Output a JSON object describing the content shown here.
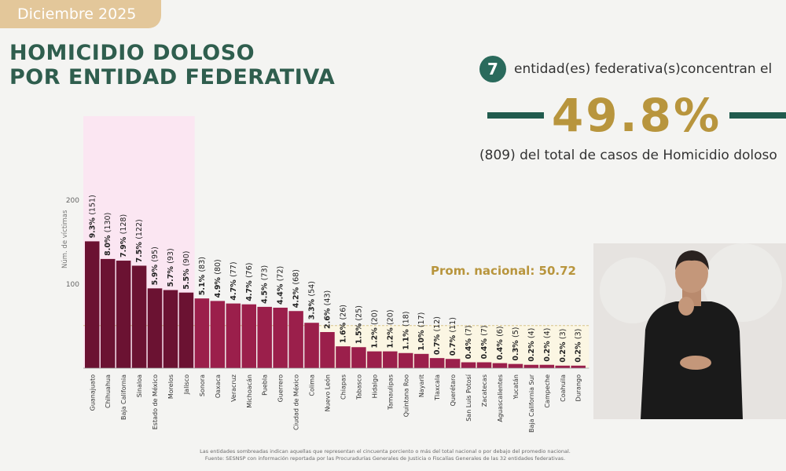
{
  "header": {
    "date_label": "Diciembre 2025",
    "title_line1": "HOMICIDIO DOLOSO",
    "title_line2": "POR ENTIDAD FEDERATIVA"
  },
  "summary": {
    "count": "7",
    "text": "entidad(es) federativa(s)concentran el",
    "percent": "49.8%",
    "cases_text": "(809) del total de casos de Homicidio doloso"
  },
  "colors": {
    "highlight_bar": "#6b1232",
    "regular_bar": "#9b1f4b",
    "highlight_band": "#fbe6f2",
    "below_avg_band": "#fbf6e3",
    "title": "#2f5e4e",
    "percent": "#b8953d",
    "average_label": "#b8953d"
  },
  "chart_data": {
    "type": "bar",
    "ylabel": "Núm. de víctimas",
    "yticks": [
      100,
      200
    ],
    "ylim": [
      0,
      300
    ],
    "average": 50.72,
    "average_label": "Prom. nacional: 50.72",
    "highlighted_count": 7,
    "categories": [
      "Guanajuato",
      "Chihuahua",
      "Baja California",
      "Sinaloa",
      "Estado de México",
      "Morelos",
      "Jalisco",
      "Sonora",
      "Oaxaca",
      "Veracruz",
      "Michoacán",
      "Puebla",
      "Guerrero",
      "Ciudad de México",
      "Colima",
      "Nuevo León",
      "Chiapas",
      "Tabasco",
      "Hidalgo",
      "Tamaulipas",
      "Quintana Roo",
      "Nayarit",
      "Tlaxcala",
      "Querétaro",
      "San Luis Potosí",
      "Zacatecas",
      "Aguascalientes",
      "Yucatán",
      "Baja California Sur",
      "Campeche",
      "Coahuila",
      "Durango"
    ],
    "values": [
      151,
      130,
      128,
      122,
      95,
      93,
      90,
      83,
      80,
      77,
      76,
      73,
      72,
      68,
      54,
      43,
      26,
      25,
      20,
      20,
      18,
      17,
      12,
      11,
      7,
      7,
      6,
      5,
      4,
      4,
      3,
      3
    ],
    "percents": [
      "9.3%",
      "8.0%",
      "7.9%",
      "7.5%",
      "5.9%",
      "5.7%",
      "5.5%",
      "5.1%",
      "4.9%",
      "4.7%",
      "4.7%",
      "4.5%",
      "4.4%",
      "4.2%",
      "3.3%",
      "2.6%",
      "1.6%",
      "1.5%",
      "1.2%",
      "1.2%",
      "1.1%",
      "1.0%",
      "0.7%",
      "0.7%",
      "0.4%",
      "0.4%",
      "0.4%",
      "0.3%",
      "0.2%",
      "0.2%",
      "0.2%",
      "0.2%"
    ],
    "value_labels": [
      "(151)",
      "(130)",
      "(128)",
      "(122)",
      "(95)",
      "(93)",
      "(90)",
      "(83)",
      "(80)",
      "(77)",
      "(76)",
      "(73)",
      "(72)",
      "(68)",
      "(54)",
      "(43)",
      "(26)",
      "(25)",
      "(20)",
      "(20)",
      "(18)",
      "(17)",
      "(12)",
      "(11)",
      "(7)",
      "(7)",
      "(6)",
      "(5)",
      "(4)",
      "(4)",
      "(3)",
      "(3)"
    ]
  },
  "footer": {
    "note_line1": "Las entidades sombreadas indican aquellas que representan el cincuenta porciento o más del total nacional o por debajo del promedio nacional.",
    "note_line2": "Fuente: SESNSP con información reportada por las Procuradurías Generales de Justicia o Fiscalías Generales de las 32 entidades federativas."
  }
}
